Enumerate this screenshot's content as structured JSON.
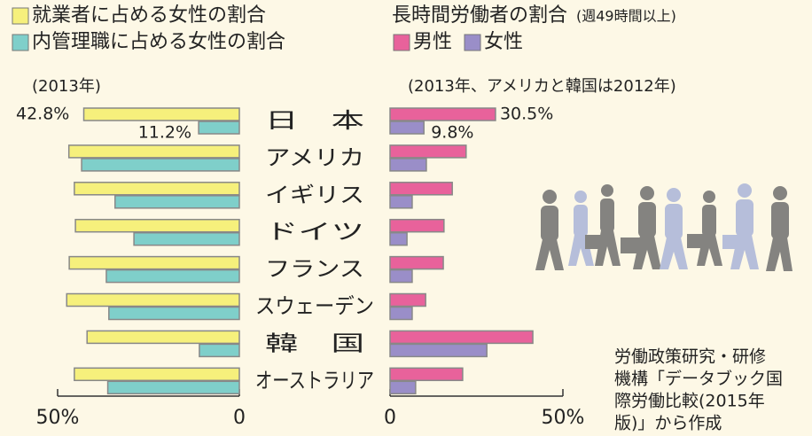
{
  "chart_data": [
    {
      "type": "bar",
      "subtitle": "(2013年)",
      "categories": [
        "日　本",
        "アメリカ",
        "イギリス",
        "ドイツ",
        "フランス",
        "スウェーデン",
        "韓　国",
        "オーストラリア"
      ],
      "series": [
        {
          "name": "就業者に占める女性の割合",
          "color": "#f6f07c",
          "values": [
            42.8,
            46.9,
            45.4,
            45.1,
            46.8,
            47.5,
            41.9,
            45.4
          ],
          "value_labels": [
            "42.8%",
            null,
            null,
            null,
            null,
            null,
            null,
            null
          ]
        },
        {
          "name": "内管理職に占める女性の割合",
          "color": "#7fcfca",
          "values": [
            11.2,
            43.4,
            34.2,
            29.0,
            36.6,
            35.9,
            11.0,
            36.2
          ],
          "value_labels": [
            "11.2%",
            null,
            null,
            null,
            null,
            null,
            null,
            null
          ]
        }
      ],
      "xlim": [
        50,
        0
      ],
      "xticks": [
        {
          "value": 50,
          "label": "50%"
        },
        0
      ]
    },
    {
      "type": "bar",
      "title": "長時間労働者の割合",
      "title_note": "(週49時間以上)",
      "subtitle": "(2013年、アメリカと韓国は2012年)",
      "series": [
        {
          "name": "男性",
          "color": "#e8629b",
          "values": [
            30.5,
            22.0,
            18.0,
            15.6,
            15.4,
            10.3,
            41.3,
            21.0
          ],
          "value_labels": [
            "30.5%",
            null,
            null,
            null,
            null,
            null,
            null,
            null
          ]
        },
        {
          "name": "女性",
          "color": "#9a8ec8",
          "values": [
            9.8,
            10.5,
            6.4,
            4.9,
            6.4,
            6.4,
            28.0,
            7.4
          ],
          "value_labels": [
            "9.8%",
            null,
            null,
            null,
            null,
            null,
            null,
            null
          ]
        }
      ],
      "xlim": [
        0,
        50
      ],
      "xticks": [
        0,
        {
          "value": 50,
          "label": "50%"
        }
      ],
      "source": [
        "労働政策研究・研修",
        "機構「データブック国",
        "際労働比較(2015年",
        "版)」から作成"
      ]
    }
  ]
}
